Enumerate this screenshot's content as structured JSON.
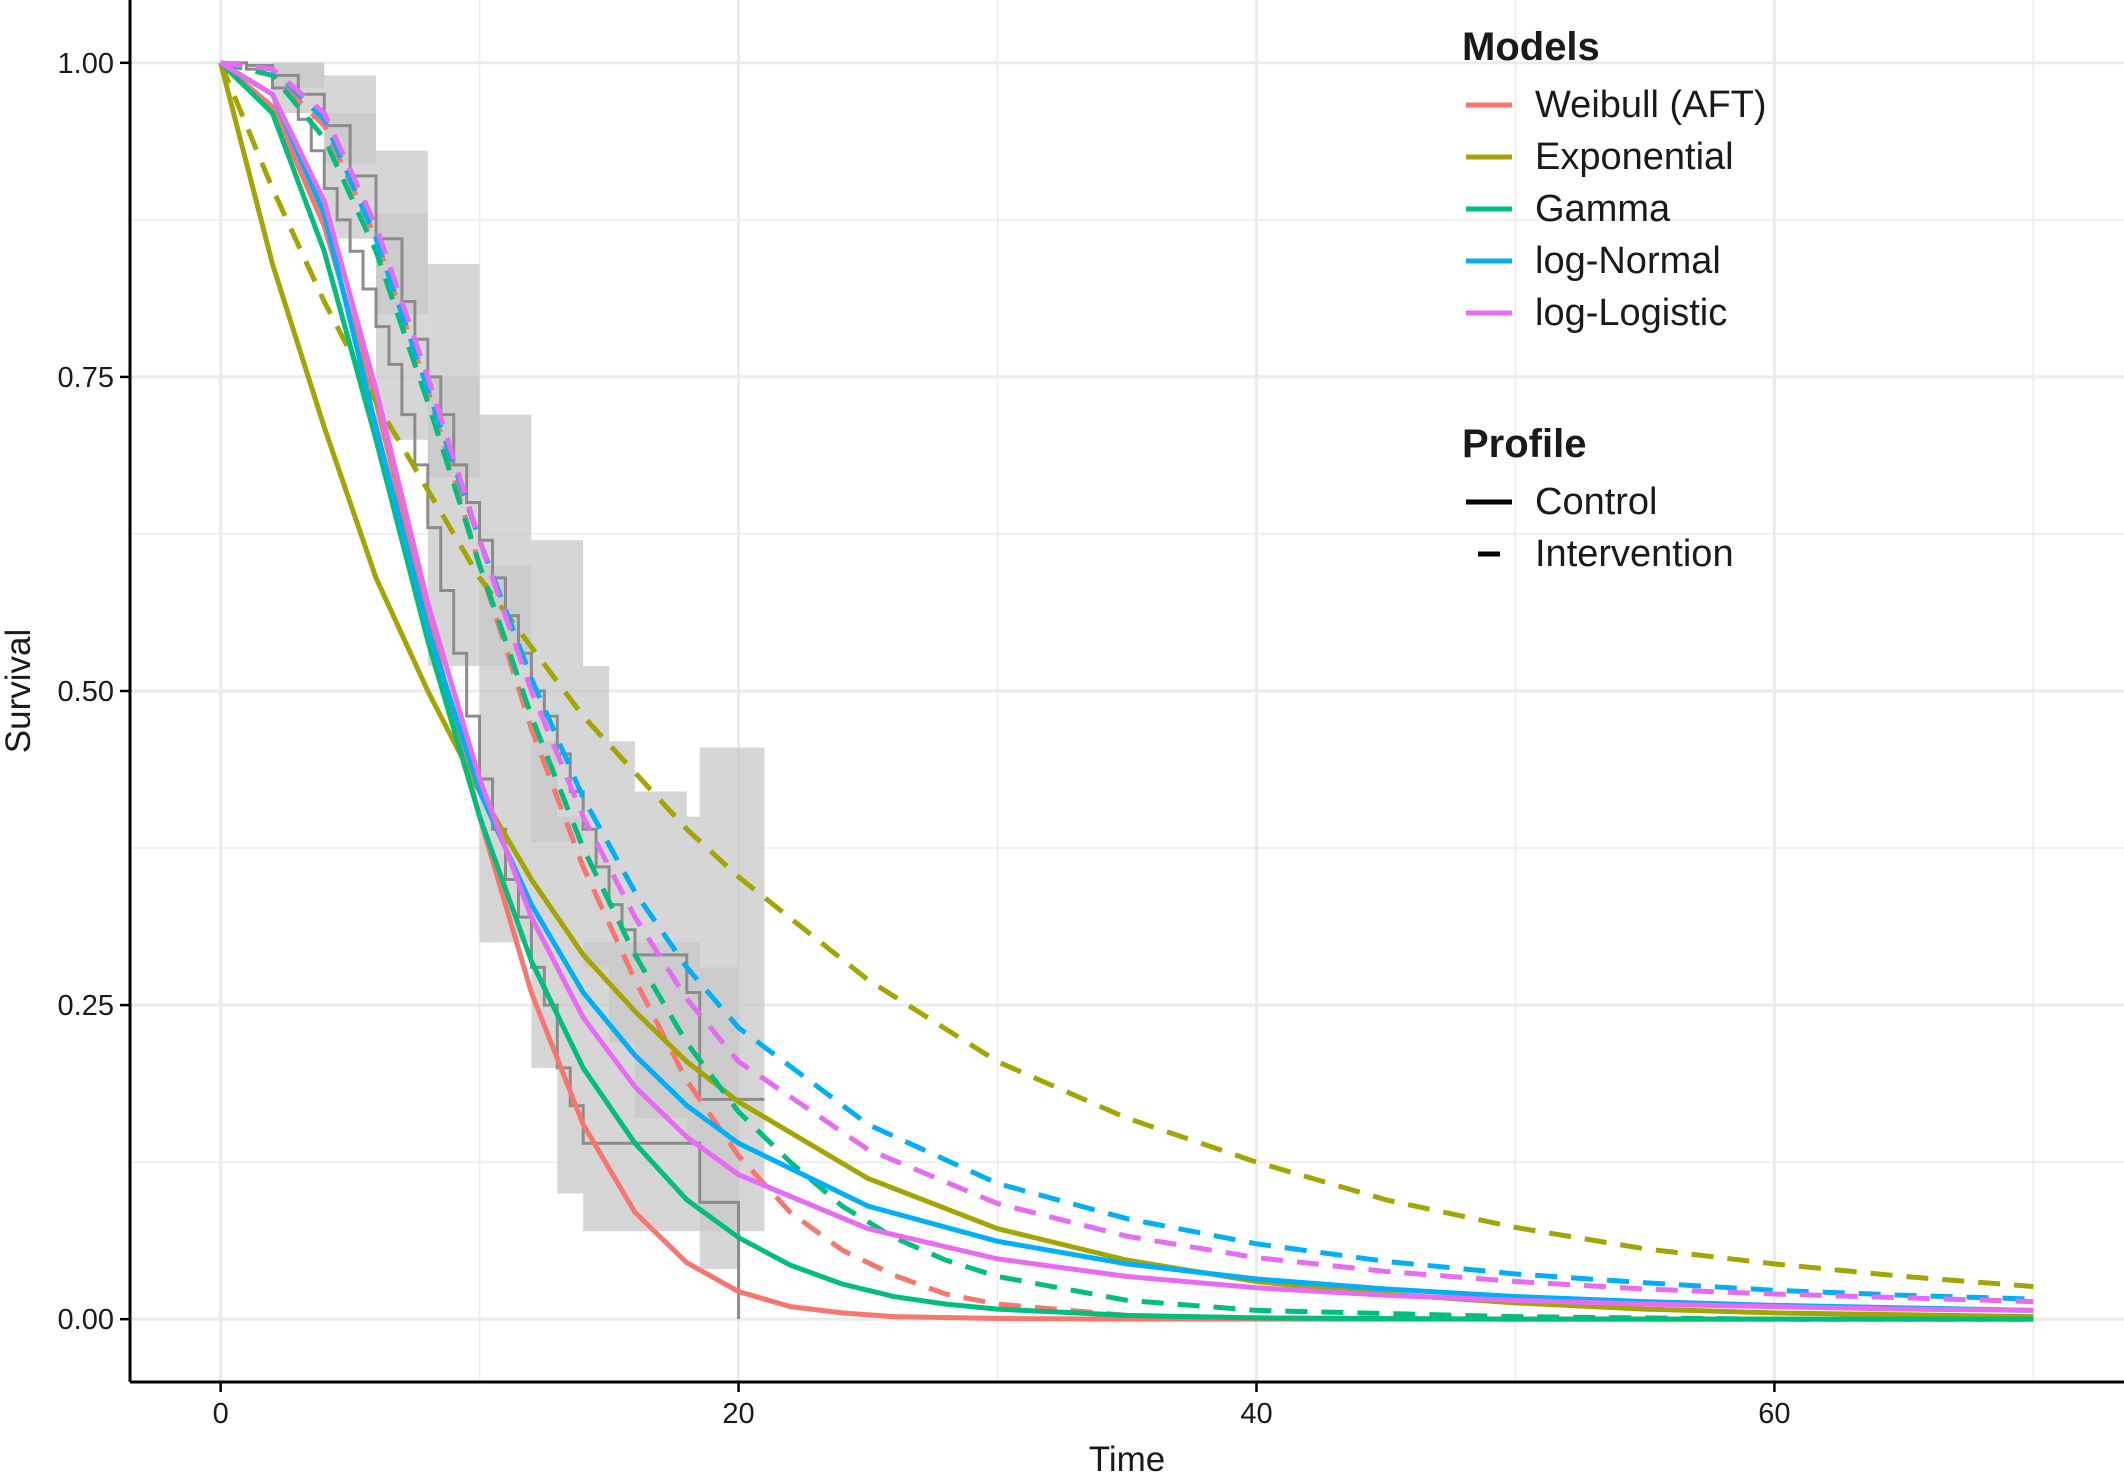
{
  "colors": {
    "weibull": "#F8766D",
    "exponential": "#A3A500",
    "gamma": "#00BF7D",
    "lognormal": "#00B0F6",
    "loglogistic": "#E76BF3",
    "km_line": "#8c8c8c",
    "km_band": "#c8c8c8",
    "grid": "#ebebeb",
    "axis": "#000000"
  },
  "chart_data": {
    "type": "line",
    "xlabel": "Time",
    "ylabel": "Survival",
    "xlim": [
      -3.5,
      73.5
    ],
    "ylim": [
      -0.05,
      1.05
    ],
    "xticks": [
      0,
      20,
      40,
      60
    ],
    "xtick_labels": [
      "0",
      "20",
      "40",
      "60"
    ],
    "yticks": [
      0,
      0.25,
      0.5,
      0.75,
      1.0
    ],
    "ytick_labels": [
      "0.00",
      "0.25",
      "0.50",
      "0.75",
      "1.00"
    ],
    "grid": true,
    "legend_position": "top-right",
    "legends": [
      {
        "title": "Models",
        "entries": [
          {
            "label": "Weibull (AFT)",
            "color_key": "weibull"
          },
          {
            "label": "Exponential",
            "color_key": "exponential"
          },
          {
            "label": "Gamma",
            "color_key": "gamma"
          },
          {
            "label": "log-Normal",
            "color_key": "lognormal"
          },
          {
            "label": "log-Logistic",
            "color_key": "loglogistic"
          }
        ]
      },
      {
        "title": "Profile",
        "entries": [
          {
            "label": "Control",
            "linetype": "solid"
          },
          {
            "label": "Intervention",
            "linetype": "dashed"
          }
        ]
      }
    ],
    "series": [
      {
        "model": "Weibull (AFT)",
        "profile": "Control",
        "color_key": "weibull",
        "x": [
          0,
          2,
          4,
          6,
          8,
          10,
          12,
          14,
          16,
          18,
          20,
          22,
          24,
          26,
          30,
          35,
          40,
          50,
          60,
          70
        ],
        "y": [
          1.0,
          0.965,
          0.87,
          0.73,
          0.56,
          0.4,
          0.26,
          0.155,
          0.085,
          0.045,
          0.022,
          0.01,
          0.005,
          0.002,
          0.0005,
          0.0,
          0.0,
          0.0,
          0.0,
          0.0
        ]
      },
      {
        "model": "Weibull (AFT)",
        "profile": "Intervention",
        "color_key": "weibull",
        "x": [
          0,
          2,
          4,
          6,
          8,
          10,
          12,
          14,
          16,
          18,
          20,
          22,
          24,
          26,
          28,
          30,
          35,
          40,
          50,
          60,
          70
        ],
        "y": [
          1.0,
          0.99,
          0.95,
          0.86,
          0.74,
          0.6,
          0.47,
          0.36,
          0.27,
          0.19,
          0.13,
          0.085,
          0.055,
          0.035,
          0.02,
          0.012,
          0.003,
          0.001,
          0.0,
          0.0,
          0.0
        ]
      },
      {
        "model": "Exponential",
        "profile": "Control",
        "color_key": "exponential",
        "x": [
          0,
          2,
          4,
          6,
          8,
          10,
          12,
          14,
          16,
          18,
          20,
          25,
          30,
          35,
          40,
          45,
          50,
          55,
          60,
          65,
          70
        ],
        "y": [
          1.0,
          0.84,
          0.71,
          0.59,
          0.5,
          0.42,
          0.35,
          0.29,
          0.245,
          0.205,
          0.173,
          0.112,
          0.072,
          0.047,
          0.03,
          0.02,
          0.013,
          0.008,
          0.005,
          0.0035,
          0.002
        ]
      },
      {
        "model": "Exponential",
        "profile": "Intervention",
        "color_key": "exponential",
        "x": [
          0,
          2,
          4,
          6,
          8,
          10,
          12,
          14,
          16,
          18,
          20,
          25,
          30,
          35,
          40,
          45,
          50,
          55,
          60,
          65,
          70
        ],
        "y": [
          1.0,
          0.9,
          0.81,
          0.73,
          0.66,
          0.59,
          0.535,
          0.48,
          0.435,
          0.39,
          0.352,
          0.27,
          0.205,
          0.16,
          0.125,
          0.095,
          0.073,
          0.056,
          0.044,
          0.034,
          0.026
        ]
      },
      {
        "model": "Gamma",
        "profile": "Control",
        "color_key": "gamma",
        "x": [
          0,
          2,
          4,
          6,
          8,
          10,
          12,
          14,
          16,
          18,
          20,
          22,
          24,
          26,
          28,
          30,
          35,
          40,
          50,
          60,
          70
        ],
        "y": [
          1.0,
          0.96,
          0.85,
          0.7,
          0.54,
          0.4,
          0.285,
          0.2,
          0.14,
          0.095,
          0.065,
          0.043,
          0.028,
          0.018,
          0.012,
          0.008,
          0.003,
          0.001,
          0.0,
          0.0,
          0.0
        ]
      },
      {
        "model": "Gamma",
        "profile": "Intervention",
        "color_key": "gamma",
        "x": [
          0,
          2,
          4,
          6,
          8,
          10,
          12,
          14,
          16,
          18,
          20,
          22,
          24,
          26,
          28,
          30,
          35,
          40,
          50,
          60,
          70
        ],
        "y": [
          1.0,
          0.99,
          0.94,
          0.85,
          0.73,
          0.6,
          0.48,
          0.375,
          0.29,
          0.22,
          0.165,
          0.125,
          0.09,
          0.065,
          0.047,
          0.034,
          0.015,
          0.007,
          0.002,
          0.0,
          0.0
        ]
      },
      {
        "model": "log-Normal",
        "profile": "Control",
        "color_key": "lognormal",
        "x": [
          0,
          2,
          4,
          6,
          8,
          10,
          12,
          14,
          16,
          18,
          20,
          25,
          30,
          35,
          40,
          45,
          50,
          55,
          60,
          65,
          70
        ],
        "y": [
          1.0,
          0.975,
          0.88,
          0.71,
          0.55,
          0.42,
          0.33,
          0.26,
          0.21,
          0.17,
          0.14,
          0.09,
          0.062,
          0.044,
          0.032,
          0.024,
          0.018,
          0.014,
          0.011,
          0.009,
          0.007
        ]
      },
      {
        "model": "log-Normal",
        "profile": "Intervention",
        "color_key": "lognormal",
        "x": [
          0,
          2,
          4,
          6,
          8,
          10,
          12,
          14,
          16,
          18,
          20,
          25,
          30,
          35,
          40,
          45,
          50,
          55,
          60,
          65,
          70
        ],
        "y": [
          1.0,
          0.995,
          0.955,
          0.86,
          0.74,
          0.62,
          0.51,
          0.415,
          0.34,
          0.28,
          0.232,
          0.155,
          0.108,
          0.08,
          0.06,
          0.046,
          0.036,
          0.029,
          0.023,
          0.019,
          0.016
        ]
      },
      {
        "model": "log-Logistic",
        "profile": "Control",
        "color_key": "loglogistic",
        "x": [
          0,
          2,
          4,
          6,
          8,
          10,
          12,
          14,
          16,
          18,
          20,
          25,
          30,
          35,
          40,
          45,
          50,
          55,
          60,
          65,
          70
        ],
        "y": [
          1.0,
          0.975,
          0.89,
          0.74,
          0.57,
          0.43,
          0.32,
          0.24,
          0.185,
          0.145,
          0.115,
          0.072,
          0.048,
          0.034,
          0.025,
          0.019,
          0.015,
          0.012,
          0.01,
          0.008,
          0.007
        ]
      },
      {
        "model": "log-Logistic",
        "profile": "Intervention",
        "color_key": "loglogistic",
        "x": [
          0,
          2,
          4,
          6,
          8,
          10,
          12,
          14,
          16,
          18,
          20,
          25,
          30,
          35,
          40,
          45,
          50,
          55,
          60,
          65,
          70
        ],
        "y": [
          1.0,
          0.995,
          0.96,
          0.87,
          0.75,
          0.62,
          0.5,
          0.4,
          0.32,
          0.255,
          0.205,
          0.135,
          0.092,
          0.066,
          0.049,
          0.038,
          0.03,
          0.024,
          0.02,
          0.017,
          0.014
        ]
      }
    ],
    "km_curves": [
      {
        "profile": "Control",
        "steps": [
          [
            0,
            1.0
          ],
          [
            1,
            0.995
          ],
          [
            2,
            0.98
          ],
          [
            3,
            0.955
          ],
          [
            3.5,
            0.93
          ],
          [
            4,
            0.9
          ],
          [
            4.5,
            0.875
          ],
          [
            5,
            0.85
          ],
          [
            5.5,
            0.82
          ],
          [
            6,
            0.79
          ],
          [
            6.5,
            0.76
          ],
          [
            7,
            0.72
          ],
          [
            7.5,
            0.68
          ],
          [
            8,
            0.63
          ],
          [
            8.5,
            0.58
          ],
          [
            9,
            0.53
          ],
          [
            9.5,
            0.48
          ],
          [
            10,
            0.43
          ],
          [
            10.5,
            0.39
          ],
          [
            11,
            0.35
          ],
          [
            11.5,
            0.32
          ],
          [
            12,
            0.28
          ],
          [
            12.5,
            0.25
          ],
          [
            13,
            0.2
          ],
          [
            13.5,
            0.17
          ],
          [
            14,
            0.14
          ],
          [
            18,
            0.14
          ],
          [
            18.5,
            0.093
          ],
          [
            20,
            0.093
          ],
          [
            20,
            0.0
          ]
        ],
        "lower": [
          [
            0,
            1.0
          ],
          [
            2,
            0.96
          ],
          [
            4,
            0.86
          ],
          [
            6,
            0.7
          ],
          [
            8,
            0.52
          ],
          [
            10,
            0.3
          ],
          [
            12,
            0.2
          ],
          [
            13,
            0.1
          ],
          [
            14,
            0.07
          ],
          [
            18,
            0.07
          ],
          [
            18.5,
            0.04
          ],
          [
            20,
            0.0
          ]
        ],
        "upper": [
          [
            0,
            1.0
          ],
          [
            2,
            1.0
          ],
          [
            4,
            0.96
          ],
          [
            6,
            0.88
          ],
          [
            8,
            0.75
          ],
          [
            10,
            0.6
          ],
          [
            12,
            0.46
          ],
          [
            13,
            0.4
          ],
          [
            14,
            0.3
          ],
          [
            18,
            0.3
          ],
          [
            18.5,
            0.28
          ],
          [
            20,
            0.28
          ]
        ]
      },
      {
        "profile": "Intervention",
        "steps": [
          [
            0,
            1.0
          ],
          [
            1,
            0.998
          ],
          [
            2,
            0.99
          ],
          [
            3,
            0.975
          ],
          [
            4,
            0.95
          ],
          [
            5,
            0.91
          ],
          [
            6,
            0.86
          ],
          [
            7,
            0.81
          ],
          [
            7.5,
            0.78
          ],
          [
            8,
            0.75
          ],
          [
            8.5,
            0.72
          ],
          [
            9,
            0.68
          ],
          [
            9.5,
            0.65
          ],
          [
            10,
            0.62
          ],
          [
            10.5,
            0.59
          ],
          [
            11,
            0.56
          ],
          [
            11.5,
            0.53
          ],
          [
            12,
            0.5
          ],
          [
            12.5,
            0.48
          ],
          [
            13,
            0.45
          ],
          [
            13.5,
            0.42
          ],
          [
            14,
            0.39
          ],
          [
            14.5,
            0.36
          ],
          [
            15,
            0.33
          ],
          [
            15.5,
            0.31
          ],
          [
            16,
            0.29
          ],
          [
            18,
            0.26
          ],
          [
            18.5,
            0.175
          ],
          [
            21,
            0.175
          ]
        ],
        "lower": [
          [
            0,
            1.0
          ],
          [
            2,
            0.98
          ],
          [
            4,
            0.92
          ],
          [
            6,
            0.8
          ],
          [
            8,
            0.67
          ],
          [
            10,
            0.52
          ],
          [
            12,
            0.38
          ],
          [
            14,
            0.28
          ],
          [
            15,
            0.22
          ],
          [
            16,
            0.16
          ],
          [
            18,
            0.14
          ],
          [
            18.5,
            0.07
          ],
          [
            21,
            0.07
          ]
        ],
        "upper": [
          [
            0,
            1.0
          ],
          [
            2,
            1.0
          ],
          [
            4,
            0.99
          ],
          [
            6,
            0.93
          ],
          [
            8,
            0.84
          ],
          [
            10,
            0.72
          ],
          [
            12,
            0.62
          ],
          [
            14,
            0.52
          ],
          [
            15,
            0.46
          ],
          [
            16,
            0.42
          ],
          [
            18,
            0.4
          ],
          [
            18.5,
            0.455
          ],
          [
            21,
            0.455
          ]
        ]
      }
    ]
  }
}
